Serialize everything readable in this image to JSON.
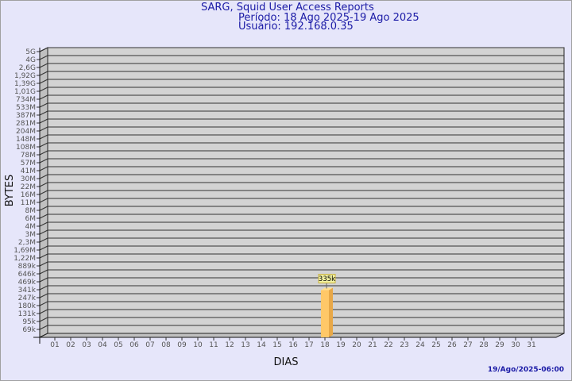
{
  "header": {
    "title": "SARG, Squid User Access Reports",
    "period": "Período: 18 Ago 2025-19 Ago 2025",
    "user": "Usuário: 192.168.0.35"
  },
  "footer": {
    "timestamp": "19/Ago/2025-06:00"
  },
  "chart_data": {
    "type": "bar",
    "xlabel": "DIAS",
    "ylabel": "BYTES",
    "yscale": "log",
    "grid": true,
    "style": "3d",
    "yticks": [
      "5G",
      "4G",
      "2,6G",
      "1,92G",
      "1,39G",
      "1,01G",
      "734M",
      "533M",
      "387M",
      "281M",
      "204M",
      "148M",
      "108M",
      "78M",
      "57M",
      "41M",
      "30M",
      "22M",
      "16M",
      "11M",
      "8M",
      "6M",
      "4M",
      "3M",
      "2,3M",
      "1,69M",
      "1,22M",
      "889k",
      "646k",
      "469k",
      "341k",
      "247k",
      "180k",
      "131k",
      "95k",
      "69k"
    ],
    "yticks_values": [
      5000000000.0,
      4000000000.0,
      2600000000.0,
      1920000000.0,
      1390000000.0,
      1010000000.0,
      734000000.0,
      533000000.0,
      387000000.0,
      281000000.0,
      204000000.0,
      148000000.0,
      108000000.0,
      78000000.0,
      57000000.0,
      41000000.0,
      30000000.0,
      22000000.0,
      16000000.0,
      11000000.0,
      8000000.0,
      6000000.0,
      4000000.0,
      3000000.0,
      2300000.0,
      1690000.0,
      1220000.0,
      889000.0,
      646000.0,
      469000.0,
      341000.0,
      247000.0,
      180000.0,
      131000.0,
      95000.0,
      69000.0
    ],
    "categories": [
      "01",
      "02",
      "03",
      "04",
      "05",
      "06",
      "07",
      "08",
      "09",
      "10",
      "11",
      "12",
      "13",
      "14",
      "15",
      "16",
      "17",
      "18",
      "19",
      "20",
      "21",
      "22",
      "23",
      "24",
      "25",
      "26",
      "27",
      "28",
      "29",
      "30",
      "31"
    ],
    "bars": [
      {
        "category": "18",
        "value": 335000,
        "label": "335k"
      }
    ],
    "colors": {
      "bar_front": "#ffc868",
      "bar_side": "#e8a848",
      "bar_top": "#ffe090",
      "plot_bg": "#d3d3d3",
      "wall": "#c0c0c0",
      "label_bg": "#f0f0a0",
      "text_blue": "#1a1aa6"
    }
  }
}
